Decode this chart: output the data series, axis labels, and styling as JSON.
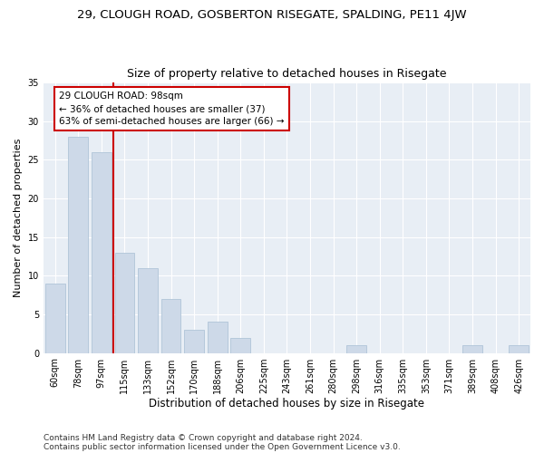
{
  "title_line1": "29, CLOUGH ROAD, GOSBERTON RISEGATE, SPALDING, PE11 4JW",
  "title_line2": "Size of property relative to detached houses in Risegate",
  "xlabel": "Distribution of detached houses by size in Risegate",
  "ylabel": "Number of detached properties",
  "bins": [
    "60sqm",
    "78sqm",
    "97sqm",
    "115sqm",
    "133sqm",
    "152sqm",
    "170sqm",
    "188sqm",
    "206sqm",
    "225sqm",
    "243sqm",
    "261sqm",
    "280sqm",
    "298sqm",
    "316sqm",
    "335sqm",
    "353sqm",
    "371sqm",
    "389sqm",
    "408sqm",
    "426sqm"
  ],
  "values": [
    9,
    28,
    26,
    13,
    11,
    7,
    3,
    4,
    2,
    0,
    0,
    0,
    0,
    1,
    0,
    0,
    0,
    0,
    1,
    0,
    1
  ],
  "bar_color": "#cdd9e8",
  "bar_edge_color": "#b0c4d8",
  "vline_color": "#cc0000",
  "annotation_text": "29 CLOUGH ROAD: 98sqm\n← 36% of detached houses are smaller (37)\n63% of semi-detached houses are larger (66) →",
  "annotation_box_color": "#ffffff",
  "annotation_box_edge": "#cc0000",
  "ylim": [
    0,
    35
  ],
  "yticks": [
    0,
    5,
    10,
    15,
    20,
    25,
    30,
    35
  ],
  "bg_color": "#e8eef5",
  "footnote1": "Contains HM Land Registry data © Crown copyright and database right 2024.",
  "footnote2": "Contains public sector information licensed under the Open Government Licence v3.0.",
  "title_fontsize": 9.5,
  "subtitle_fontsize": 9,
  "tick_fontsize": 7,
  "ylabel_fontsize": 8,
  "xlabel_fontsize": 8.5,
  "annot_fontsize": 7.5,
  "footnote_fontsize": 6.5
}
